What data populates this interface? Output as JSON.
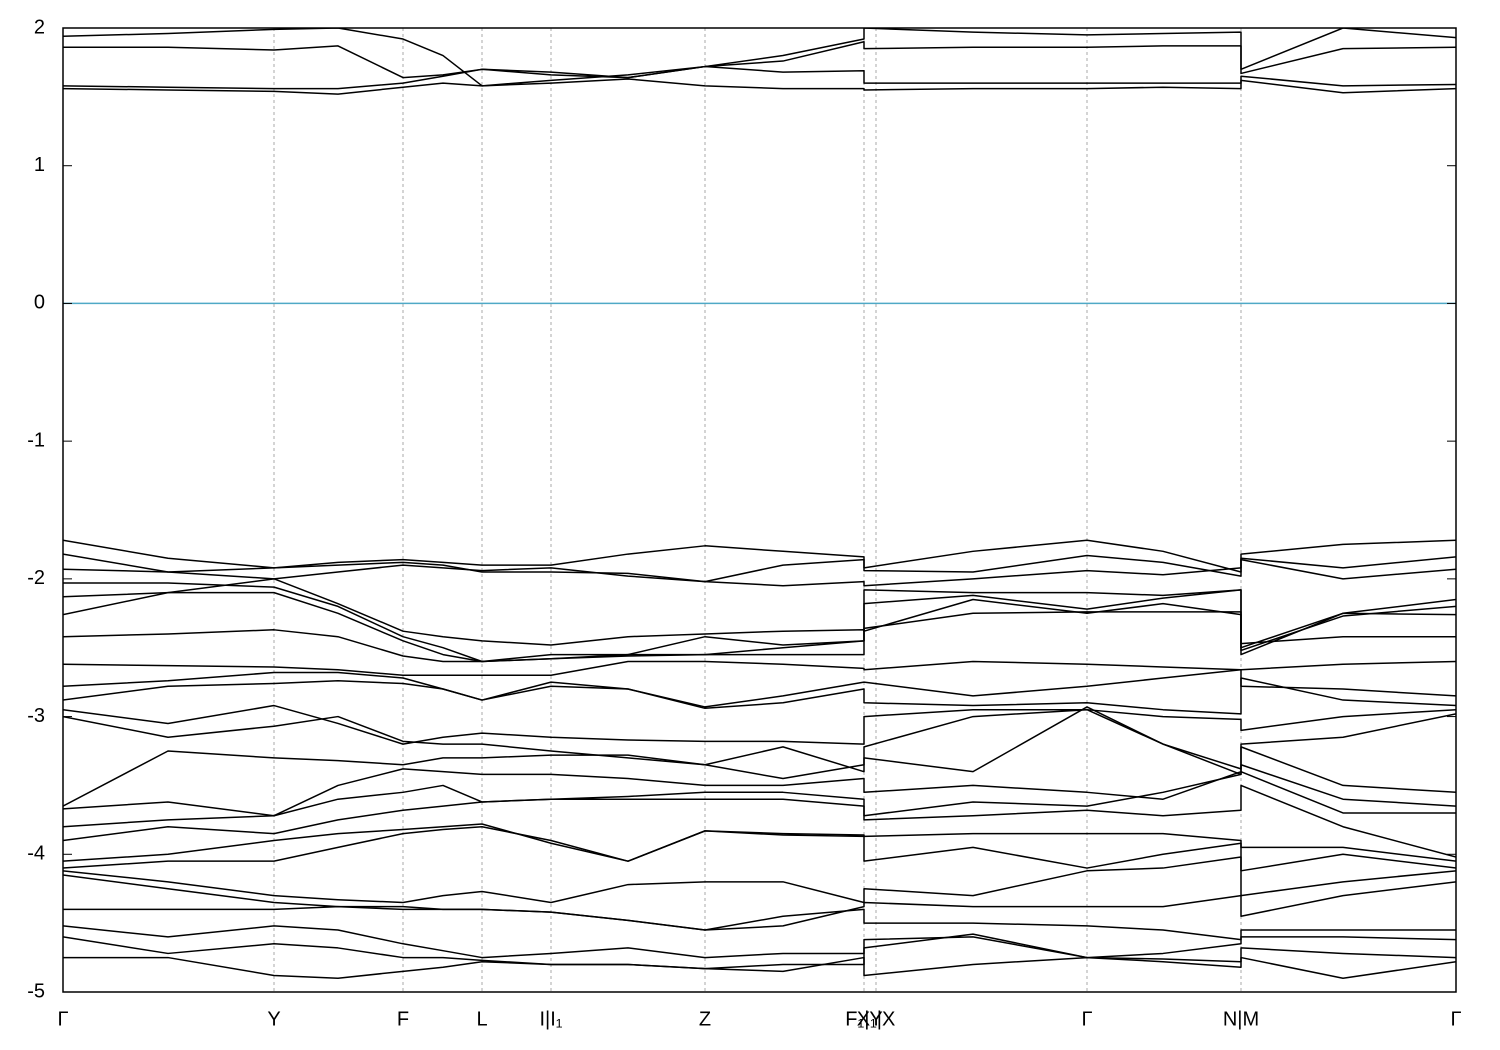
{
  "chart_data": {
    "type": "line",
    "x": [
      0,
      1.05,
      2.11,
      2.75,
      3.4,
      3.8,
      4.19,
      4.88,
      5.65,
      6.42,
      7.2,
      8.01,
      8.01,
      9.1,
      10.24,
      11.0,
      11.78,
      11.78,
      12.8,
      13.93
    ],
    "xlim": [
      0,
      13.93
    ],
    "xticks": [
      {
        "value": 0,
        "label": "Γ"
      },
      {
        "value": 2.11,
        "label": "Y"
      },
      {
        "value": 3.4,
        "label": "F"
      },
      {
        "value": 4.19,
        "label": "L"
      },
      {
        "value": 4.88,
        "label": "I|I₁"
      },
      {
        "value": 6.42,
        "label": "Z"
      },
      {
        "value": 8.01,
        "label": "F₁|Y"
      },
      {
        "value": 8.13,
        "label": "X₁|X"
      },
      {
        "value": 10.24,
        "label": "Γ"
      },
      {
        "value": 11.78,
        "label": "N|M"
      },
      {
        "value": 13.93,
        "label": "Γ"
      }
    ],
    "ylim": [
      -5,
      2
    ],
    "yticks": [
      -5,
      -4,
      -3,
      -2,
      -1,
      0,
      1,
      2
    ],
    "grid": "x",
    "reference_line": {
      "y": 0,
      "color": "#4fa9c6"
    },
    "series": [
      {
        "color": "#000000",
        "values": [
          1.56,
          1.55,
          1.54,
          1.52,
          1.57,
          1.6,
          1.58,
          1.6,
          1.63,
          1.58,
          1.56,
          1.56,
          1.55,
          1.56,
          1.56,
          1.57,
          1.56,
          1.62,
          1.53,
          1.56
        ]
      },
      {
        "color": "#000000",
        "values": [
          1.58,
          1.57,
          1.56,
          1.56,
          1.6,
          1.65,
          1.7,
          1.68,
          1.64,
          1.72,
          1.68,
          1.69,
          1.6,
          1.6,
          1.6,
          1.6,
          1.6,
          1.65,
          1.58,
          1.59
        ]
      },
      {
        "color": "#000000",
        "values": [
          1.86,
          1.86,
          1.84,
          1.87,
          1.64,
          1.66,
          1.7,
          1.66,
          1.64,
          1.72,
          1.76,
          1.9,
          1.85,
          1.86,
          1.86,
          1.87,
          1.87,
          1.67,
          1.85,
          1.86
        ]
      },
      {
        "color": "#000000",
        "values": [
          1.94,
          1.96,
          1.99,
          2.0,
          1.92,
          1.8,
          1.58,
          1.62,
          1.66,
          1.72,
          1.8,
          1.92,
          2.0,
          1.97,
          1.95,
          1.96,
          1.97,
          1.7,
          2.0,
          1.93
        ]
      },
      {
        "color": "#000000",
        "values": [
          -1.72,
          -1.85,
          -1.92,
          -1.88,
          -1.86,
          -1.88,
          -1.9,
          -1.9,
          -1.82,
          -1.76,
          -1.8,
          -1.84,
          -1.92,
          -1.8,
          -1.72,
          -1.8,
          -1.95,
          -1.82,
          -1.75,
          -1.72
        ]
      },
      {
        "color": "#000000",
        "values": [
          -1.82,
          -1.95,
          -2.0,
          -1.95,
          -1.9,
          -1.92,
          -1.94,
          -1.92,
          -1.98,
          -2.02,
          -1.9,
          -1.86,
          -1.94,
          -1.95,
          -1.83,
          -1.88,
          -1.98,
          -1.85,
          -1.92,
          -1.84
        ]
      },
      {
        "color": "#000000",
        "values": [
          -1.93,
          -1.95,
          -1.92,
          -1.9,
          -1.88,
          -1.9,
          -1.95,
          -1.95,
          -1.96,
          -2.02,
          -2.05,
          -2.02,
          -2.05,
          -2.0,
          -1.94,
          -1.97,
          -1.92,
          -1.86,
          -2.0,
          -1.93
        ]
      },
      {
        "color": "#000000",
        "values": [
          -2.03,
          -2.03,
          -2.06,
          -2.2,
          -2.42,
          -2.5,
          -2.6,
          -2.58,
          -2.55,
          -2.55,
          -2.5,
          -2.45,
          -2.08,
          -2.1,
          -2.1,
          -2.12,
          -2.08,
          -2.5,
          -2.25,
          -2.15
        ]
      },
      {
        "color": "#000000",
        "values": [
          -2.13,
          -2.1,
          -2.1,
          -2.25,
          -2.45,
          -2.55,
          -2.6,
          -2.58,
          -2.56,
          -2.55,
          -2.55,
          -2.55,
          -2.18,
          -2.12,
          -2.22,
          -2.14,
          -2.08,
          -2.52,
          -2.27,
          -2.2
        ]
      },
      {
        "color": "#000000",
        "values": [
          -2.26,
          -2.1,
          -2.0,
          -2.18,
          -2.38,
          -2.42,
          -2.45,
          -2.48,
          -2.42,
          -2.4,
          -2.38,
          -2.37,
          -2.38,
          -2.15,
          -2.25,
          -2.18,
          -2.26,
          -2.55,
          -2.25,
          -2.26
        ]
      },
      {
        "color": "#000000",
        "values": [
          -2.42,
          -2.4,
          -2.37,
          -2.42,
          -2.56,
          -2.6,
          -2.6,
          -2.55,
          -2.55,
          -2.42,
          -2.48,
          -2.45,
          -2.36,
          -2.25,
          -2.24,
          -2.24,
          -2.24,
          -2.47,
          -2.42,
          -2.42
        ]
      },
      {
        "color": "#000000",
        "values": [
          -2.62,
          -2.63,
          -2.64,
          -2.66,
          -2.7,
          -2.7,
          -2.7,
          -2.7,
          -2.6,
          -2.6,
          -2.62,
          -2.65,
          -2.66,
          -2.6,
          -2.62,
          -2.64,
          -2.66,
          -2.66,
          -2.62,
          -2.6
        ]
      },
      {
        "color": "#000000",
        "values": [
          -2.78,
          -2.74,
          -2.68,
          -2.68,
          -2.72,
          -2.8,
          -2.88,
          -2.78,
          -2.8,
          -2.93,
          -2.85,
          -2.75,
          -2.75,
          -2.85,
          -2.78,
          -2.72,
          -2.66,
          -2.78,
          -2.8,
          -2.85
        ]
      },
      {
        "color": "#000000",
        "values": [
          -2.88,
          -2.78,
          -2.76,
          -2.74,
          -2.76,
          -2.8,
          -2.88,
          -2.75,
          -2.8,
          -2.94,
          -2.9,
          -2.8,
          -2.9,
          -2.92,
          -2.9,
          -2.95,
          -2.98,
          -2.72,
          -2.88,
          -2.92
        ]
      },
      {
        "color": "#000000",
        "values": [
          -2.95,
          -3.05,
          -2.92,
          -3.05,
          -3.2,
          -3.15,
          -3.12,
          -3.15,
          -3.17,
          -3.18,
          -3.18,
          -3.2,
          -3.0,
          -2.95,
          -2.95,
          -3.0,
          -3.02,
          -3.1,
          -3.0,
          -2.95
        ]
      },
      {
        "color": "#000000",
        "values": [
          -3.0,
          -3.15,
          -3.07,
          -3.0,
          -3.18,
          -3.2,
          -3.2,
          -3.25,
          -3.3,
          -3.35,
          -3.22,
          -3.4,
          -3.22,
          -3.0,
          -2.95,
          -3.2,
          -3.38,
          -3.2,
          -3.15,
          -2.98
        ]
      },
      {
        "color": "#000000",
        "values": [
          -3.65,
          -3.25,
          -3.3,
          -3.32,
          -3.35,
          -3.3,
          -3.3,
          -3.28,
          -3.28,
          -3.35,
          -3.45,
          -3.35,
          -3.3,
          -3.4,
          -2.93,
          -3.2,
          -3.42,
          -3.22,
          -3.5,
          -3.55
        ]
      },
      {
        "color": "#000000",
        "values": [
          -3.67,
          -3.62,
          -3.72,
          -3.5,
          -3.38,
          -3.4,
          -3.42,
          -3.42,
          -3.45,
          -3.5,
          -3.5,
          -3.45,
          -3.55,
          -3.5,
          -3.55,
          -3.6,
          -3.4,
          -3.35,
          -3.6,
          -3.65
        ]
      },
      {
        "color": "#000000",
        "values": [
          -3.8,
          -3.75,
          -3.72,
          -3.6,
          -3.55,
          -3.5,
          -3.62,
          -3.6,
          -3.58,
          -3.55,
          -3.55,
          -3.6,
          -3.72,
          -3.62,
          -3.65,
          -3.55,
          -3.42,
          -3.4,
          -3.7,
          -3.7
        ]
      },
      {
        "color": "#000000",
        "values": [
          -3.9,
          -3.8,
          -3.85,
          -3.75,
          -3.68,
          -3.65,
          -3.62,
          -3.6,
          -3.6,
          -3.6,
          -3.6,
          -3.65,
          -3.75,
          -3.72,
          -3.68,
          -3.72,
          -3.68,
          -3.5,
          -3.8,
          -4.02
        ]
      },
      {
        "color": "#000000",
        "values": [
          -4.05,
          -4.0,
          -3.9,
          -3.85,
          -3.82,
          -3.8,
          -3.78,
          -3.92,
          -4.05,
          -3.83,
          -3.85,
          -3.86,
          -3.87,
          -3.85,
          -3.85,
          -3.85,
          -3.9,
          -3.95,
          -3.95,
          -4.05
        ]
      },
      {
        "color": "#000000",
        "values": [
          -4.1,
          -4.05,
          -4.05,
          -3.95,
          -3.85,
          -3.82,
          -3.8,
          -3.9,
          -4.05,
          -3.83,
          -3.86,
          -3.87,
          -4.05,
          -3.95,
          -4.1,
          -4.0,
          -3.92,
          -4.12,
          -4.0,
          -4.1
        ]
      },
      {
        "color": "#000000",
        "values": [
          -4.12,
          -4.2,
          -4.3,
          -4.33,
          -4.35,
          -4.3,
          -4.27,
          -4.35,
          -4.22,
          -4.2,
          -4.2,
          -4.35,
          -4.25,
          -4.3,
          -4.12,
          -4.1,
          -4.02,
          -4.3,
          -4.2,
          -4.12
        ]
      },
      {
        "color": "#000000",
        "values": [
          -4.15,
          -4.25,
          -4.35,
          -4.38,
          -4.38,
          -4.4,
          -4.4,
          -4.42,
          -4.48,
          -4.55,
          -4.52,
          -4.38,
          -4.35,
          -4.38,
          -4.38,
          -4.38,
          -4.3,
          -4.45,
          -4.3,
          -4.2
        ]
      },
      {
        "color": "#000000",
        "values": [
          -4.4,
          -4.4,
          -4.4,
          -4.38,
          -4.4,
          -4.4,
          -4.4,
          -4.42,
          -4.48,
          -4.55,
          -4.45,
          -4.4,
          -4.5,
          -4.5,
          -4.52,
          -4.55,
          -4.62,
          -4.55,
          -4.55,
          -4.55
        ]
      },
      {
        "color": "#000000",
        "values": [
          -4.52,
          -4.6,
          -4.52,
          -4.55,
          -4.65,
          -4.7,
          -4.75,
          -4.72,
          -4.68,
          -4.75,
          -4.72,
          -4.72,
          -4.62,
          -4.6,
          -4.75,
          -4.72,
          -4.65,
          -4.6,
          -4.6,
          -4.62
        ]
      },
      {
        "color": "#000000",
        "values": [
          -4.6,
          -4.72,
          -4.65,
          -4.68,
          -4.75,
          -4.75,
          -4.77,
          -4.8,
          -4.8,
          -4.83,
          -4.8,
          -4.8,
          -4.68,
          -4.58,
          -4.75,
          -4.76,
          -4.78,
          -4.68,
          -4.72,
          -4.75
        ]
      },
      {
        "color": "#000000",
        "values": [
          -4.75,
          -4.75,
          -4.88,
          -4.9,
          -4.85,
          -4.82,
          -4.78,
          -4.8,
          -4.8,
          -4.83,
          -4.85,
          -4.75,
          -4.88,
          -4.8,
          -4.75,
          -4.78,
          -4.82,
          -4.75,
          -4.9,
          -4.78
        ]
      }
    ]
  }
}
